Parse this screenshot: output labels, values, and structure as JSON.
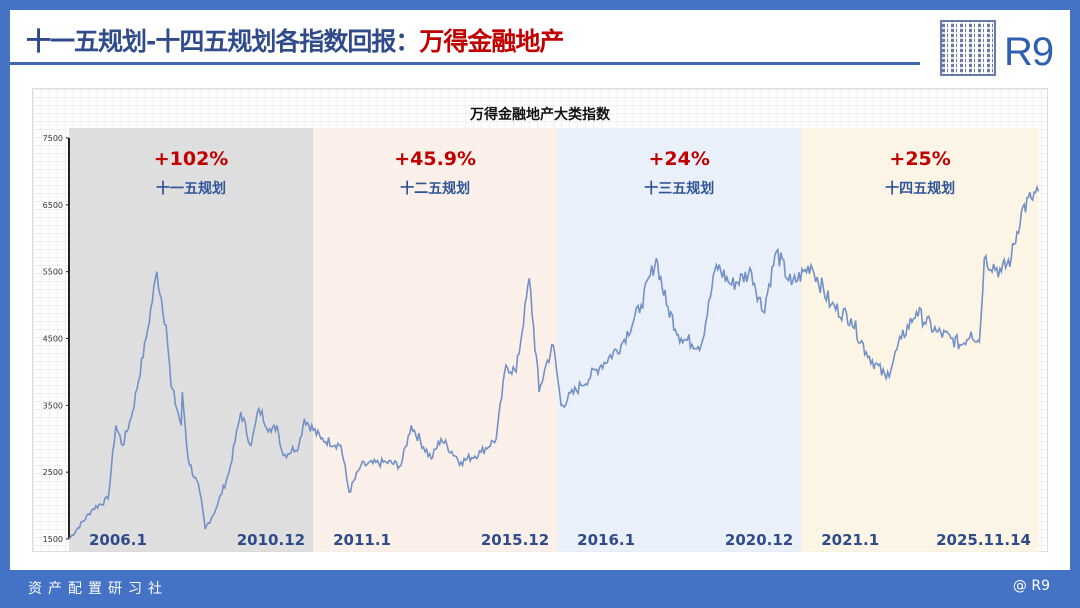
{
  "header": {
    "title_main": "十一五规划-十四五规划各指数回报：",
    "title_highlight": "万得金融地产",
    "brand": "R9"
  },
  "footer": {
    "left": "资产配置研习社",
    "right": "@ R9"
  },
  "chart_data": {
    "type": "line",
    "title": "万得金融地产大类指数",
    "ylim": [
      1500,
      7500
    ],
    "yticks": [
      1500,
      2500,
      3500,
      4500,
      5500,
      6500,
      7500
    ],
    "xlim": [
      2006.0,
      2025.87
    ],
    "periods": [
      {
        "name": "十一五规划",
        "return": "+102%",
        "start": "2006.1",
        "end": "2010.12",
        "from": 2006.0,
        "to": 2011.0,
        "color": "#d9d9d9"
      },
      {
        "name": "十二五规划",
        "return": "+45.9%",
        "start": "2011.1",
        "end": "2015.12",
        "from": 2011.0,
        "to": 2016.0,
        "color": "#fcefe6"
      },
      {
        "name": "十三五规划",
        "return": "+24%",
        "start": "2016.1",
        "end": "2020.12",
        "from": 2016.0,
        "to": 2021.0,
        "color": "#e7eef9"
      },
      {
        "name": "十四五规划",
        "return": "+25%",
        "start": "2021.1",
        "end": "2025.11.14",
        "from": 2021.0,
        "to": 2025.87,
        "color": "#fdf4e3"
      }
    ],
    "series": [
      {
        "name": "万得金融地产大类指数",
        "color": "#7391c6",
        "points": [
          [
            2006.0,
            1500
          ],
          [
            2006.49,
            1950
          ],
          [
            2006.8,
            2100
          ],
          [
            2006.96,
            3200
          ],
          [
            2007.1,
            2900
          ],
          [
            2007.3,
            3400
          ],
          [
            2007.58,
            4500
          ],
          [
            2007.8,
            5500
          ],
          [
            2007.99,
            4700
          ],
          [
            2008.09,
            3800
          ],
          [
            2008.3,
            3200
          ],
          [
            2008.32,
            3700
          ],
          [
            2008.44,
            2700
          ],
          [
            2008.68,
            2200
          ],
          [
            2008.79,
            1650
          ],
          [
            2009.01,
            1950
          ],
          [
            2009.28,
            2500
          ],
          [
            2009.52,
            3400
          ],
          [
            2009.73,
            2900
          ],
          [
            2009.89,
            3450
          ],
          [
            2010.14,
            3100
          ],
          [
            2010.26,
            3200
          ],
          [
            2010.39,
            2750
          ],
          [
            2010.71,
            2900
          ],
          [
            2010.82,
            3300
          ],
          [
            2011.16,
            3000
          ],
          [
            2011.57,
            2900
          ],
          [
            2011.74,
            2200
          ],
          [
            2011.98,
            2600
          ],
          [
            2012.5,
            2650
          ],
          [
            2012.8,
            2600
          ],
          [
            2013.01,
            3200
          ],
          [
            2013.42,
            2700
          ],
          [
            2013.62,
            3000
          ],
          [
            2014.03,
            2650
          ],
          [
            2014.44,
            2800
          ],
          [
            2014.75,
            3000
          ],
          [
            2014.95,
            4100
          ],
          [
            2015.16,
            4000
          ],
          [
            2015.43,
            5400
          ],
          [
            2015.63,
            3700
          ],
          [
            2015.77,
            4100
          ],
          [
            2015.92,
            4400
          ],
          [
            2016.08,
            3500
          ],
          [
            2016.49,
            3800
          ],
          [
            2016.9,
            4100
          ],
          [
            2017.31,
            4400
          ],
          [
            2017.72,
            5000
          ],
          [
            2018.03,
            5700
          ],
          [
            2018.24,
            5000
          ],
          [
            2018.54,
            4500
          ],
          [
            2018.95,
            4400
          ],
          [
            2019.26,
            5600
          ],
          [
            2019.57,
            5300
          ],
          [
            2019.98,
            5500
          ],
          [
            2020.22,
            4900
          ],
          [
            2020.49,
            5800
          ],
          [
            2020.8,
            5300
          ],
          [
            2021.2,
            5600
          ],
          [
            2021.61,
            5000
          ],
          [
            2022.02,
            4800
          ],
          [
            2022.33,
            4300
          ],
          [
            2022.74,
            3900
          ],
          [
            2023.05,
            4500
          ],
          [
            2023.36,
            4900
          ],
          [
            2023.77,
            4600
          ],
          [
            2024.07,
            4500
          ],
          [
            2024.28,
            4400
          ],
          [
            2024.48,
            4600
          ],
          [
            2024.65,
            4450
          ],
          [
            2024.75,
            5700
          ],
          [
            2025.1,
            5500
          ],
          [
            2025.3,
            5700
          ],
          [
            2025.51,
            6400
          ],
          [
            2025.71,
            6600
          ],
          [
            2025.86,
            6700
          ]
        ]
      }
    ]
  }
}
